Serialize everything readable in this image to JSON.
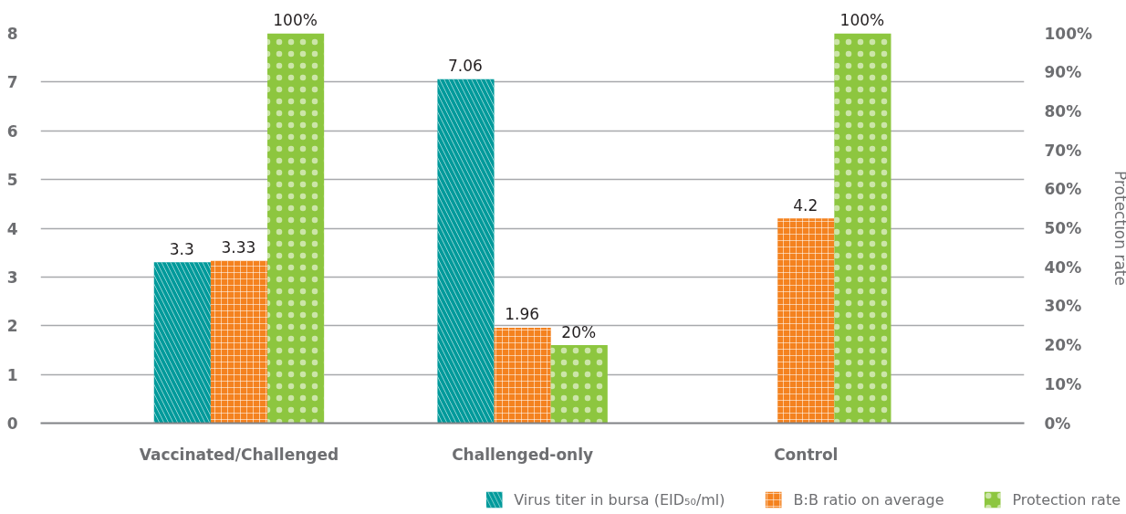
{
  "chart_data": {
    "type": "bar",
    "categories": [
      "Vaccinated/Challenged",
      "Challenged-only",
      "Control"
    ],
    "series": [
      {
        "name": "Virus titer in bursa (EID₅₀/ml)",
        "color": "#009a9b",
        "values": [
          3.3,
          7.06,
          null
        ],
        "value_labels": [
          "3.3",
          "7.06",
          null
        ]
      },
      {
        "name": "B:B ratio on average",
        "color": "#f4821f",
        "values": [
          3.33,
          1.96,
          4.2
        ],
        "value_labels": [
          "3.33",
          "1.96",
          "4.2"
        ]
      },
      {
        "name": "Protection rate",
        "color": "#8dc63f",
        "values": [
          100,
          20,
          100
        ],
        "axis": "y2",
        "value_labels": [
          "100%",
          "20%",
          "100%"
        ]
      }
    ],
    "ylim": [
      0,
      8
    ],
    "yticks": [
      0,
      1,
      2,
      3,
      4,
      5,
      6,
      7,
      8
    ],
    "y2label": "Protection rate",
    "y2lim": [
      0,
      100
    ],
    "y2ticks": [
      {
        "value": 0,
        "label": "0%"
      },
      {
        "value": 10,
        "label": "10%"
      },
      {
        "value": 20,
        "label": "20%"
      },
      {
        "value": 30,
        "label": "30%"
      },
      {
        "value": 40,
        "label": "40%"
      },
      {
        "value": 50,
        "label": "50%"
      },
      {
        "value": 60,
        "label": "60%"
      },
      {
        "value": 70,
        "label": "70%"
      },
      {
        "value": 80,
        "label": "80%"
      },
      {
        "value": 90,
        "label": "90%"
      },
      {
        "value": 100,
        "label": "100%"
      }
    ],
    "grid": "y",
    "legend": "bottom right"
  }
}
